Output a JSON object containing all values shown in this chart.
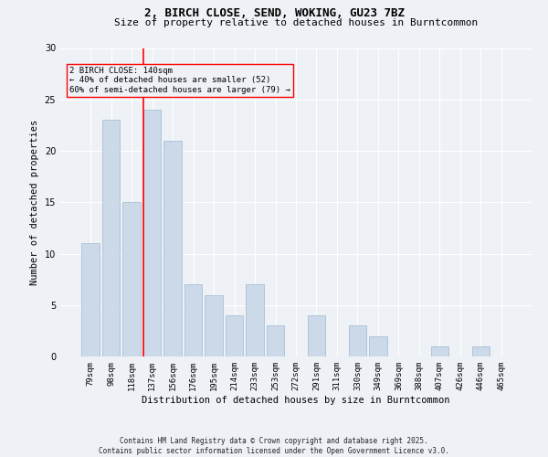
{
  "title1": "2, BIRCH CLOSE, SEND, WOKING, GU23 7BZ",
  "title2": "Size of property relative to detached houses in Burntcommon",
  "xlabel": "Distribution of detached houses by size in Burntcommon",
  "ylabel": "Number of detached properties",
  "categories": [
    "79sqm",
    "98sqm",
    "118sqm",
    "137sqm",
    "156sqm",
    "176sqm",
    "195sqm",
    "214sqm",
    "233sqm",
    "253sqm",
    "272sqm",
    "291sqm",
    "311sqm",
    "330sqm",
    "349sqm",
    "369sqm",
    "388sqm",
    "407sqm",
    "426sqm",
    "446sqm",
    "465sqm"
  ],
  "values": [
    11,
    23,
    15,
    24,
    21,
    7,
    6,
    4,
    7,
    3,
    0,
    4,
    0,
    3,
    2,
    0,
    0,
    1,
    0,
    1,
    0
  ],
  "bar_color": "#ccd9e8",
  "bar_edgecolor": "#aabfd4",
  "vline_x_index": 3,
  "vline_color": "red",
  "ylim": [
    0,
    30
  ],
  "yticks": [
    0,
    5,
    10,
    15,
    20,
    25,
    30
  ],
  "annotation_line1": "2 BIRCH CLOSE: 140sqm",
  "annotation_line2": "← 40% of detached houses are smaller (52)",
  "annotation_line3": "60% of semi-detached houses are larger (79) →",
  "annotation_box_edgecolor": "red",
  "background_color": "#eef2f7",
  "grid_color": "#ffffff",
  "footer_line1": "Contains HM Land Registry data © Crown copyright and database right 2025.",
  "footer_line2": "Contains public sector information licensed under the Open Government Licence v3.0.",
  "title1_fontsize": 9,
  "title2_fontsize": 8,
  "ylabel_fontsize": 7.5,
  "xlabel_fontsize": 7.5,
  "tick_fontsize": 6.5,
  "annot_fontsize": 6.5,
  "footer_fontsize": 5.5
}
